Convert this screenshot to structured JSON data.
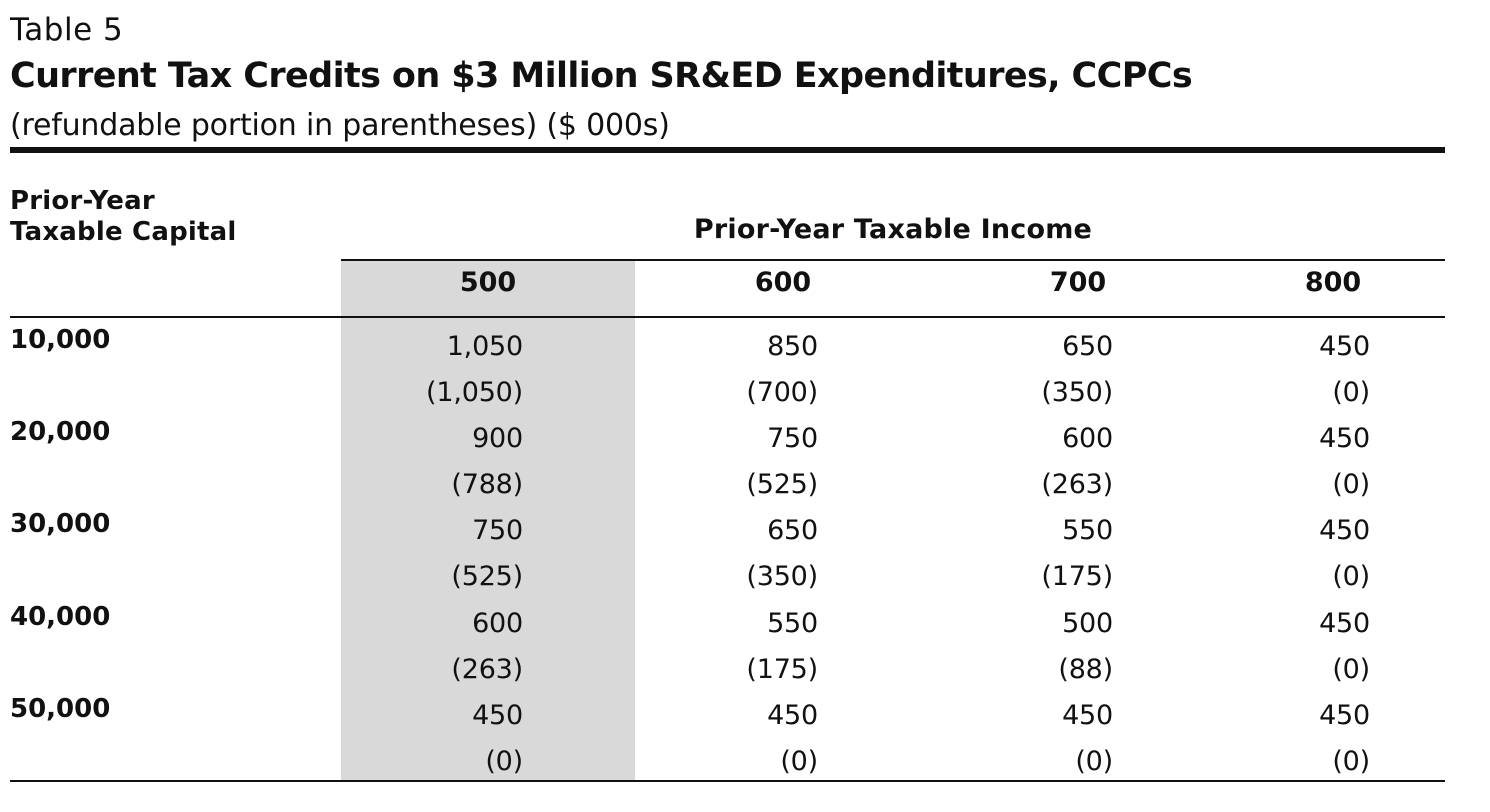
{
  "header": {
    "table_label": "Table 5",
    "title": "Current Tax Credits on $3 Million SR&ED Expenditures, CCPCs",
    "subtitle": "(refundable portion in parentheses) ($ 000s)"
  },
  "table": {
    "row_header_label": [
      "Prior-Year",
      "Taxable Capital"
    ],
    "column_group_label": "Prior-Year Taxable Income",
    "columns": [
      "500",
      "600",
      "700",
      "800"
    ],
    "highlighted_column": "500",
    "rows": [
      {
        "label": "10,000",
        "totals": [
          "1,050",
          "850",
          "650",
          "450"
        ],
        "refundable": [
          "(1,050)",
          "(700)",
          "(350)",
          "(0)"
        ]
      },
      {
        "label": "20,000",
        "totals": [
          "900",
          "750",
          "600",
          "450"
        ],
        "refundable": [
          "(788)",
          "(525)",
          "(263)",
          "(0)"
        ]
      },
      {
        "label": "30,000",
        "totals": [
          "750",
          "650",
          "550",
          "450"
        ],
        "refundable": [
          "(525)",
          "(350)",
          "(175)",
          "(0)"
        ]
      },
      {
        "label": "40,000",
        "totals": [
          "600",
          "550",
          "500",
          "450"
        ],
        "refundable": [
          "(263)",
          "(175)",
          "(88)",
          "(0)"
        ]
      },
      {
        "label": "50,000",
        "totals": [
          "450",
          "450",
          "450",
          "450"
        ],
        "refundable": [
          "(0)",
          "(0)",
          "(0)",
          "(0)"
        ]
      }
    ]
  },
  "colors": {
    "highlight": "#d9d9d9",
    "text": "#111111",
    "rule": "#111111"
  }
}
